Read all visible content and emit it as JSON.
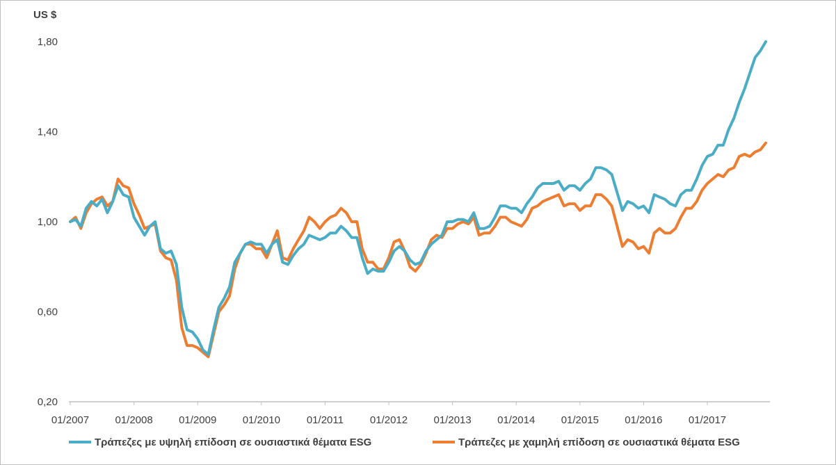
{
  "chart_data": {
    "type": "line",
    "unit_label": "US $",
    "ylim": [
      0.2,
      1.8
    ],
    "y_ticks": [
      "0,20",
      "0,60",
      "1,00",
      "1,40",
      "1,80"
    ],
    "y_tick_values": [
      0.2,
      0.6,
      1.0,
      1.4,
      1.8
    ],
    "x_start": "2007-01",
    "x_end": "2017-12",
    "x_ticks": [
      "01/2007",
      "01/2008",
      "01/2009",
      "01/2010",
      "01/2011",
      "01/2012",
      "01/2013",
      "01/2014",
      "01/2015",
      "01/2016",
      "01/2017"
    ],
    "grid": false,
    "legend_position": "bottom",
    "series": [
      {
        "name": "Τράπεζες με υψηλή επίδοση σε ουσιαστικά θέματα ESG",
        "color": "#4bacc6",
        "values": [
          1.0,
          1.01,
          0.98,
          1.06,
          1.09,
          1.07,
          1.1,
          1.04,
          1.09,
          1.16,
          1.12,
          1.11,
          1.02,
          0.98,
          0.94,
          0.98,
          1.0,
          0.88,
          0.86,
          0.87,
          0.81,
          0.62,
          0.52,
          0.51,
          0.48,
          0.43,
          0.41,
          0.52,
          0.62,
          0.66,
          0.71,
          0.82,
          0.86,
          0.9,
          0.91,
          0.9,
          0.9,
          0.86,
          0.9,
          0.92,
          0.82,
          0.81,
          0.85,
          0.88,
          0.9,
          0.94,
          0.93,
          0.92,
          0.93,
          0.95,
          0.95,
          0.98,
          0.96,
          0.93,
          0.93,
          0.84,
          0.77,
          0.79,
          0.78,
          0.78,
          0.82,
          0.87,
          0.89,
          0.87,
          0.83,
          0.81,
          0.82,
          0.87,
          0.9,
          0.92,
          0.94,
          1.0,
          1.0,
          1.01,
          1.01,
          1.0,
          1.04,
          0.97,
          0.97,
          0.98,
          1.02,
          1.07,
          1.07,
          1.06,
          1.06,
          1.04,
          1.08,
          1.11,
          1.15,
          1.17,
          1.17,
          1.17,
          1.18,
          1.14,
          1.16,
          1.16,
          1.14,
          1.17,
          1.19,
          1.24,
          1.24,
          1.23,
          1.21,
          1.13,
          1.05,
          1.09,
          1.08,
          1.06,
          1.07,
          1.04,
          1.12,
          1.11,
          1.1,
          1.08,
          1.07,
          1.12,
          1.14,
          1.14,
          1.19,
          1.25,
          1.29,
          1.3,
          1.34,
          1.34,
          1.41,
          1.46,
          1.53,
          1.59,
          1.66,
          1.73,
          1.76,
          1.8
        ]
      },
      {
        "name": "Τράπεζες με χαμηλή επίδοση σε ουσιαστικά θέματα ESG",
        "color": "#ed7d31",
        "values": [
          1.0,
          1.02,
          0.97,
          1.04,
          1.08,
          1.1,
          1.11,
          1.07,
          1.09,
          1.19,
          1.16,
          1.15,
          1.08,
          1.03,
          0.97,
          0.98,
          0.99,
          0.87,
          0.84,
          0.83,
          0.74,
          0.53,
          0.45,
          0.45,
          0.44,
          0.42,
          0.4,
          0.5,
          0.6,
          0.63,
          0.67,
          0.79,
          0.86,
          0.9,
          0.9,
          0.88,
          0.88,
          0.84,
          0.9,
          0.96,
          0.84,
          0.83,
          0.88,
          0.92,
          0.96,
          1.02,
          1.0,
          0.97,
          1.0,
          1.02,
          1.03,
          1.06,
          1.04,
          1.0,
          1.0,
          0.88,
          0.82,
          0.82,
          0.79,
          0.79,
          0.84,
          0.91,
          0.92,
          0.87,
          0.8,
          0.78,
          0.81,
          0.86,
          0.92,
          0.94,
          0.93,
          0.97,
          0.97,
          0.99,
          1.0,
          0.99,
          1.02,
          0.94,
          0.95,
          0.95,
          0.98,
          1.02,
          1.02,
          1.0,
          0.99,
          0.98,
          1.01,
          1.06,
          1.07,
          1.09,
          1.1,
          1.11,
          1.12,
          1.07,
          1.08,
          1.08,
          1.05,
          1.07,
          1.07,
          1.12,
          1.12,
          1.1,
          1.07,
          0.98,
          0.89,
          0.92,
          0.91,
          0.88,
          0.89,
          0.86,
          0.95,
          0.97,
          0.95,
          0.95,
          0.97,
          1.02,
          1.06,
          1.06,
          1.09,
          1.14,
          1.17,
          1.19,
          1.21,
          1.2,
          1.23,
          1.24,
          1.29,
          1.3,
          1.29,
          1.31,
          1.32,
          1.35
        ]
      }
    ]
  }
}
